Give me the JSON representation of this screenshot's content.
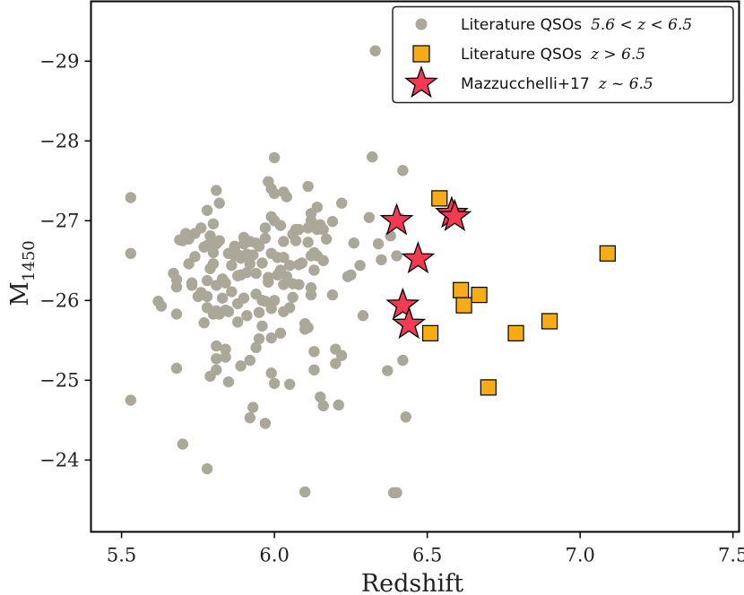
{
  "chart_data": {
    "type": "scatter",
    "xlabel": "Redshift",
    "ylabel": "M",
    "ylabel_subscript": "1450",
    "xlim": [
      5.4,
      7.52
    ],
    "ylim": [
      -23.1,
      -29.75
    ],
    "x_ticks": [
      5.5,
      6.0,
      6.5,
      7.0,
      7.5
    ],
    "x_tick_labels": [
      "5.5",
      "6.0",
      "6.5",
      "7.0",
      "7.5"
    ],
    "y_ticks": [
      -24,
      -25,
      -26,
      -27,
      -28,
      -29
    ],
    "y_tick_labels": [
      "−24",
      "−25",
      "−26",
      "−27",
      "−28",
      "−29"
    ],
    "grid": false,
    "legend_position": "top-right",
    "series": [
      {
        "name": "Literature QSOs",
        "legend_math": "5.6 < z < 6.5",
        "marker": "circle",
        "color": "#aca899",
        "points": [
          [
            5.53,
            -27.29
          ],
          [
            5.53,
            -26.59
          ],
          [
            5.53,
            -24.75
          ],
          [
            5.62,
            -25.99
          ],
          [
            5.63,
            -25.93
          ],
          [
            5.67,
            -26.34
          ],
          [
            5.68,
            -26.17
          ],
          [
            5.68,
            -26.26
          ],
          [
            5.68,
            -25.83
          ],
          [
            5.68,
            -25.15
          ],
          [
            5.69,
            -26.76
          ],
          [
            5.7,
            -26.75
          ],
          [
            5.7,
            -24.2
          ],
          [
            5.71,
            -26.84
          ],
          [
            5.72,
            -26.77
          ],
          [
            5.72,
            -26.46
          ],
          [
            5.73,
            -26.22
          ],
          [
            5.73,
            -26.19
          ],
          [
            5.74,
            -26.55
          ],
          [
            5.74,
            -26.84
          ],
          [
            5.75,
            -26.05
          ],
          [
            5.76,
            -26.91
          ],
          [
            5.76,
            -26.1
          ],
          [
            5.77,
            -25.72
          ],
          [
            5.77,
            -26.67
          ],
          [
            5.78,
            -26.69
          ],
          [
            5.78,
            -26.25
          ],
          [
            5.78,
            -26.05
          ],
          [
            5.78,
            -25.91
          ],
          [
            5.78,
            -27.13
          ],
          [
            5.78,
            -23.89
          ],
          [
            5.79,
            -26.81
          ],
          [
            5.79,
            -26.4
          ],
          [
            5.79,
            -25.05
          ],
          [
            5.8,
            -26.96
          ],
          [
            5.8,
            -26.6
          ],
          [
            5.8,
            -26.46
          ],
          [
            5.8,
            -25.83
          ],
          [
            5.81,
            -25.87
          ],
          [
            5.81,
            -26.19
          ],
          [
            5.81,
            -26.71
          ],
          [
            5.81,
            -25.27
          ],
          [
            5.81,
            -25.43
          ],
          [
            5.81,
            -25.13
          ],
          [
            5.81,
            -27.38
          ],
          [
            5.82,
            -26.75
          ],
          [
            5.82,
            -25.83
          ],
          [
            5.82,
            -27.22
          ],
          [
            5.83,
            -26.03
          ],
          [
            5.83,
            -26.27
          ],
          [
            5.84,
            -26.22
          ],
          [
            5.84,
            -25.88
          ],
          [
            5.84,
            -25.29
          ],
          [
            5.84,
            -25.39
          ],
          [
            5.85,
            -26.59
          ],
          [
            5.85,
            -24.98
          ],
          [
            5.85,
            -25.86
          ],
          [
            5.86,
            -26.44
          ],
          [
            5.86,
            -26.11
          ],
          [
            5.87,
            -26.65
          ],
          [
            5.87,
            -26.56
          ],
          [
            5.87,
            -26.68
          ],
          [
            5.88,
            -25.96
          ],
          [
            5.88,
            -25.73
          ],
          [
            5.88,
            -26.31
          ],
          [
            5.89,
            -26.32
          ],
          [
            5.89,
            -26.56
          ],
          [
            5.89,
            -26.53
          ],
          [
            5.89,
            -25.18
          ],
          [
            5.9,
            -26.03
          ],
          [
            5.9,
            -26.79
          ],
          [
            5.9,
            -26.71
          ],
          [
            5.91,
            -26.58
          ],
          [
            5.91,
            -25.81
          ],
          [
            5.91,
            -26.35
          ],
          [
            5.92,
            -26.46
          ],
          [
            5.92,
            -26.74
          ],
          [
            5.92,
            -25.25
          ],
          [
            5.92,
            -24.53
          ],
          [
            5.93,
            -26.57
          ],
          [
            5.93,
            -24.66
          ],
          [
            5.94,
            -26.34
          ],
          [
            5.94,
            -26.72
          ],
          [
            5.94,
            -25.41
          ],
          [
            5.94,
            -26.08
          ],
          [
            5.95,
            -26.68
          ],
          [
            5.95,
            -25.52
          ],
          [
            5.95,
            -25.85
          ],
          [
            5.96,
            -26.47
          ],
          [
            5.96,
            -26.0
          ],
          [
            5.96,
            -25.68
          ],
          [
            5.97,
            -25.99
          ],
          [
            5.97,
            -26.91
          ],
          [
            5.97,
            -24.46
          ],
          [
            5.97,
            -26.78
          ],
          [
            5.98,
            -27.49
          ],
          [
            5.98,
            -26.23
          ],
          [
            5.98,
            -26.29
          ],
          [
            5.99,
            -27.4
          ],
          [
            5.99,
            -27.05
          ],
          [
            5.99,
            -26.59
          ],
          [
            5.99,
            -25.9
          ],
          [
            5.99,
            -25.53
          ],
          [
            5.99,
            -25.09
          ],
          [
            6.0,
            -27.0
          ],
          [
            6.0,
            -27.34
          ],
          [
            6.0,
            -26.0
          ],
          [
            6.0,
            -24.96
          ],
          [
            6.0,
            -27.79
          ],
          [
            6.01,
            -26.54
          ],
          [
            6.01,
            -26.32
          ],
          [
            6.02,
            -26.94
          ],
          [
            6.02,
            -26.38
          ],
          [
            6.02,
            -25.59
          ],
          [
            6.03,
            -26.2
          ],
          [
            6.03,
            -26.54
          ],
          [
            6.03,
            -26.74
          ],
          [
            6.03,
            -25.86
          ],
          [
            6.03,
            -27.36
          ],
          [
            6.04,
            -27.3
          ],
          [
            6.04,
            -26.3
          ],
          [
            6.05,
            -26.44
          ],
          [
            6.05,
            -25.91
          ],
          [
            6.05,
            -24.95
          ],
          [
            6.06,
            -26.83
          ],
          [
            6.06,
            -26.21
          ],
          [
            6.06,
            -26.04
          ],
          [
            6.07,
            -26.75
          ],
          [
            6.07,
            -26.89
          ],
          [
            6.08,
            -26.45
          ],
          [
            6.08,
            -26.2
          ],
          [
            6.08,
            -26.89
          ],
          [
            6.09,
            -26.47
          ],
          [
            6.1,
            -25.71
          ],
          [
            6.1,
            -25.64
          ],
          [
            6.1,
            -23.6
          ],
          [
            6.11,
            -26.73
          ],
          [
            6.11,
            -26.91
          ],
          [
            6.11,
            -27.43
          ],
          [
            6.11,
            -25.66
          ],
          [
            6.12,
            -26.16
          ],
          [
            6.12,
            -27.09
          ],
          [
            6.12,
            -27.0
          ],
          [
            6.12,
            -26.07
          ],
          [
            6.12,
            -26.56
          ],
          [
            6.13,
            -25.13
          ],
          [
            6.13,
            -26.6
          ],
          [
            6.13,
            -25.36
          ],
          [
            6.13,
            -26.38
          ],
          [
            6.14,
            -26.89
          ],
          [
            6.14,
            -27.17
          ],
          [
            6.14,
            -26.56
          ],
          [
            6.15,
            -24.79
          ],
          [
            6.15,
            -26.95
          ],
          [
            6.16,
            -24.68
          ],
          [
            6.16,
            -26.5
          ],
          [
            6.16,
            -26.89
          ],
          [
            6.17,
            -26.77
          ],
          [
            6.19,
            -26.07
          ],
          [
            6.19,
            -26.99
          ],
          [
            6.2,
            -25.21
          ],
          [
            6.2,
            -25.39
          ],
          [
            6.21,
            -24.69
          ],
          [
            6.22,
            -25.31
          ],
          [
            6.22,
            -27.22
          ],
          [
            6.24,
            -26.3
          ],
          [
            6.25,
            -26.32
          ],
          [
            6.26,
            -26.72
          ],
          [
            6.28,
            -26.44
          ],
          [
            6.29,
            -25.81
          ],
          [
            6.31,
            -27.04
          ],
          [
            6.32,
            -27.8
          ],
          [
            6.33,
            -29.13
          ],
          [
            6.34,
            -26.71
          ],
          [
            6.35,
            -26.51
          ],
          [
            6.37,
            -25.12
          ],
          [
            6.38,
            -26.81
          ],
          [
            6.39,
            -23.59
          ],
          [
            6.4,
            -23.59
          ],
          [
            6.4,
            -26.56
          ],
          [
            6.41,
            -27.03
          ],
          [
            6.42,
            -25.25
          ],
          [
            6.42,
            -27.63
          ],
          [
            6.43,
            -24.54
          ]
        ]
      },
      {
        "name": "Literature QSOs",
        "legend_math": "z > 6.5",
        "marker": "square",
        "color": "#f5ac16",
        "points": [
          [
            6.54,
            -27.28
          ],
          [
            6.51,
            -25.59
          ],
          [
            6.61,
            -26.13
          ],
          [
            6.62,
            -25.94
          ],
          [
            6.67,
            -26.07
          ],
          [
            6.7,
            -24.91
          ],
          [
            6.79,
            -25.59
          ],
          [
            6.9,
            -25.74
          ],
          [
            7.09,
            -26.59
          ]
        ]
      },
      {
        "name": "Mazzucchelli+17",
        "legend_math": "z ~ 6.5",
        "marker": "star",
        "color": "#f23a52",
        "points": [
          [
            6.4,
            -27.0
          ],
          [
            6.58,
            -27.09
          ],
          [
            6.59,
            -27.05
          ],
          [
            6.47,
            -26.52
          ],
          [
            6.42,
            -25.94
          ],
          [
            6.44,
            -25.7
          ]
        ]
      }
    ]
  }
}
